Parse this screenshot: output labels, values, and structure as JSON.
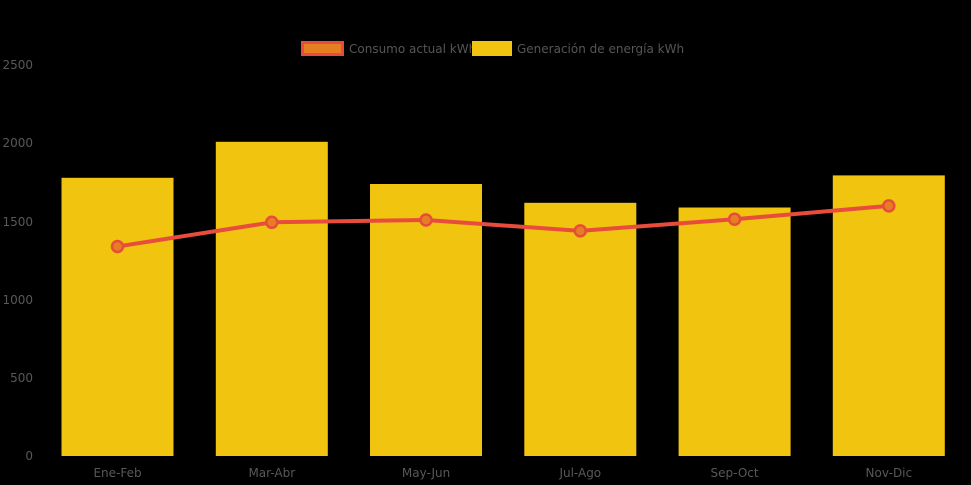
{
  "chart_data": {
    "type": "bar",
    "title": "",
    "xlabel": "",
    "ylabel": "",
    "categories": [
      "Ene-Feb",
      "Mar-Abr",
      "May-Jun",
      "Jul-Ago",
      "Sep-Oct",
      "Nov-Dic"
    ],
    "series": [
      {
        "name": "Consumo actual kWh",
        "type": "line",
        "color": "#e74c3c",
        "marker_fill": "#e67e22",
        "values": [
          1340,
          1495,
          1510,
          1440,
          1515,
          1600
        ]
      },
      {
        "name": "Generación de energía kWh",
        "type": "bar",
        "color": "#f1c40f",
        "values": [
          1780,
          2010,
          1740,
          1620,
          1590,
          1795
        ]
      }
    ],
    "ylim": [
      0,
      2500
    ],
    "yticks": [
      0,
      500,
      1000,
      1500,
      2000,
      2500
    ],
    "grid": false,
    "legend_position": "top-center",
    "background": "#000000",
    "text_color": "#585858"
  }
}
